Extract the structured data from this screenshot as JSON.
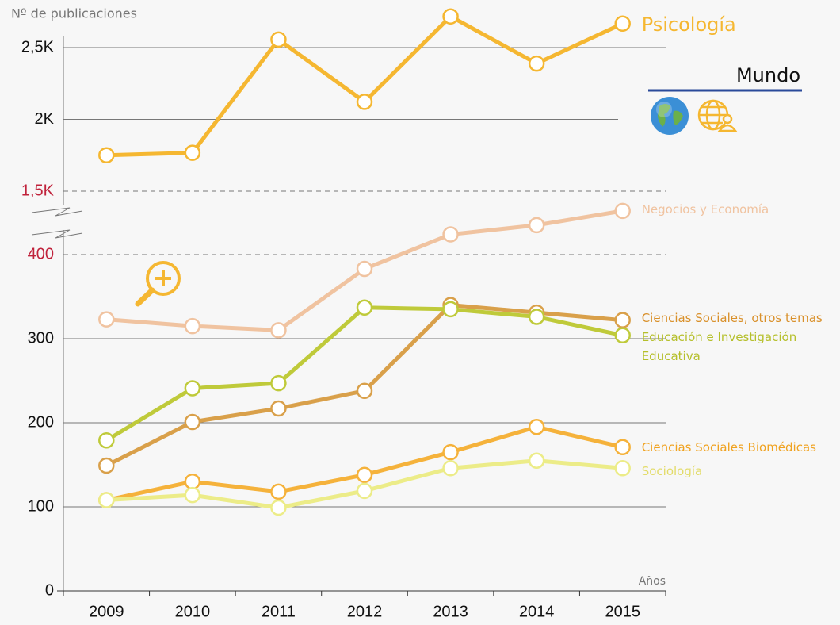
{
  "chart_data": {
    "type": "line",
    "y_label": "Nº de publicaciones",
    "x_label": "Años",
    "region": "Mundo",
    "categories": [
      "2009",
      "2010",
      "2011",
      "2012",
      "2013",
      "2014",
      "2015"
    ],
    "ylim": [
      0,
      400
    ],
    "yticks": [
      0,
      100,
      200,
      300,
      400
    ],
    "y2lim": [
      1500,
      2500
    ],
    "y2ticks": [
      {
        "value": 1500,
        "label": "1,5K"
      },
      {
        "value": 2000,
        "label": "2K"
      },
      {
        "value": 2500,
        "label": "2,5K"
      }
    ],
    "grid": true,
    "series": [
      {
        "name": "Psicología",
        "color": "#f5b731",
        "axis": "y2",
        "values": [
          1750,
          1767,
          2556,
          2122,
          2717,
          2389,
          2667
        ]
      },
      {
        "name": "Negocios y Economía",
        "color": "#f0c3a0",
        "values": [
          323,
          315,
          310,
          383,
          424,
          435,
          452
        ]
      },
      {
        "name": "Ciencias Sociales, otros temas",
        "color": "#d9a04a",
        "values": [
          149,
          201,
          217,
          238,
          340,
          331,
          322
        ]
      },
      {
        "name": "Educación e Investigación Educativa",
        "color": "#bfca3a",
        "values": [
          179,
          241,
          247,
          337,
          335,
          326,
          304
        ]
      },
      {
        "name": "Ciencias Sociales Biomédicas",
        "color": "#f5b23b",
        "values": [
          108,
          130,
          118,
          138,
          165,
          195,
          171
        ]
      },
      {
        "name": "Sociología",
        "color": "#ecec88",
        "values": [
          108,
          114,
          99,
          119,
          146,
          155,
          146
        ]
      }
    ]
  }
}
